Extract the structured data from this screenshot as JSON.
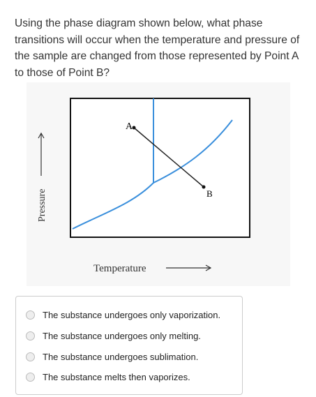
{
  "question": {
    "lines": [
      "Using the phase diagram shown below, what phase",
      "transitions will occur when the temperature and pressure of",
      "the sample are changed from those represented by Point A",
      "to those of Point B?"
    ]
  },
  "diagram": {
    "point_a": "A",
    "point_b": "B",
    "y_axis_label": "Pressure",
    "x_axis_label": "Temperature"
  },
  "options": [
    "The substance undergoes only vaporization.",
    "The substance undergoes only melting.",
    "The substance undergoes sublimation.",
    "The substance melts then vaporizes."
  ]
}
